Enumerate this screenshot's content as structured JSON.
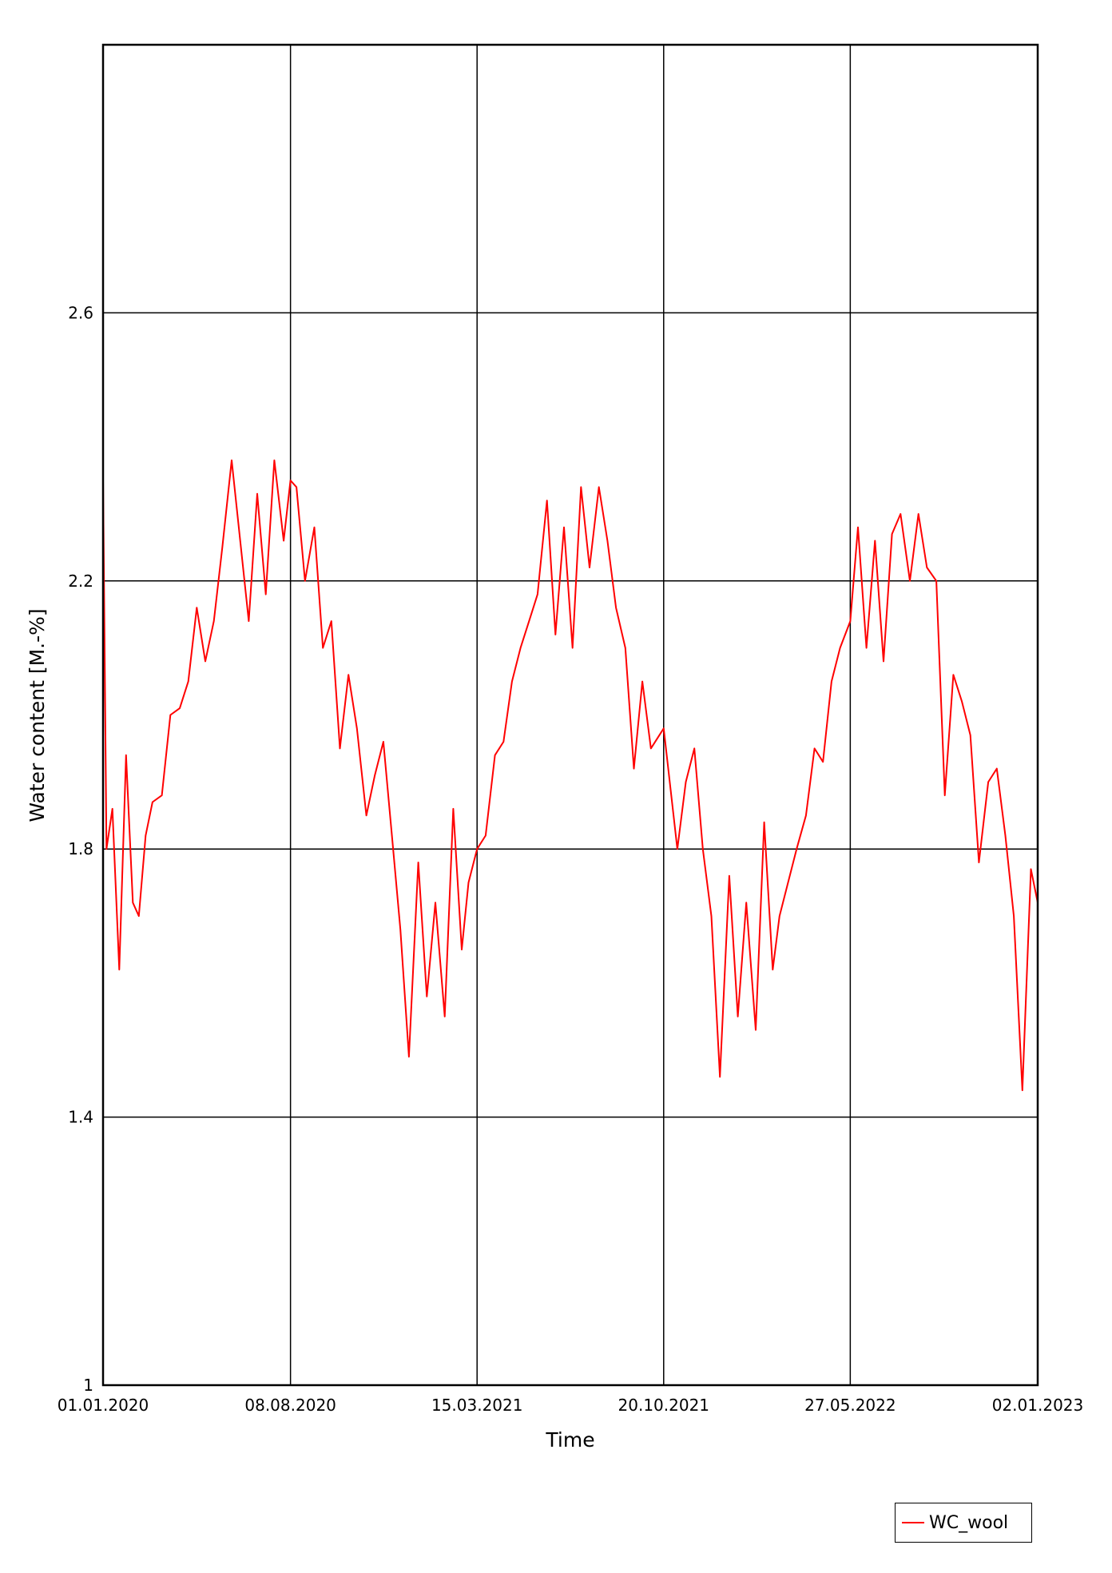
{
  "chart_data": {
    "type": "line",
    "title": "",
    "xlabel": "Time",
    "ylabel": "Water content [M.-%]",
    "xlim": [
      "2020-01-01",
      "2023-01-02"
    ],
    "ylim": [
      1.0,
      3.0
    ],
    "x_ticks": [
      "01.01.2020",
      "08.08.2020",
      "15.03.2021",
      "20.10.2021",
      "27.05.2022",
      "02.01.2023"
    ],
    "y_ticks": [
      "1",
      "1.4",
      "1.8",
      "2.2",
      "2.6"
    ],
    "grid": true,
    "legend": {
      "position": "bottom-right",
      "entries": [
        "WC_wool"
      ]
    },
    "series": [
      {
        "name": "WC_wool",
        "color": "#ff0000",
        "x": [
          "2020-01-01",
          "2020-01-05",
          "2020-01-12",
          "2020-01-20",
          "2020-01-28",
          "2020-02-05",
          "2020-02-12",
          "2020-02-20",
          "2020-02-28",
          "2020-03-10",
          "2020-03-20",
          "2020-03-31",
          "2020-04-10",
          "2020-04-20",
          "2020-04-30",
          "2020-05-10",
          "2020-05-20",
          "2020-05-31",
          "2020-06-10",
          "2020-06-20",
          "2020-06-30",
          "2020-07-10",
          "2020-07-20",
          "2020-07-31",
          "2020-08-08",
          "2020-08-15",
          "2020-08-25",
          "2020-09-05",
          "2020-09-15",
          "2020-09-25",
          "2020-10-05",
          "2020-10-15",
          "2020-10-25",
          "2020-11-05",
          "2020-11-15",
          "2020-11-25",
          "2020-12-05",
          "2020-12-15",
          "2020-12-25",
          "2021-01-05",
          "2021-01-15",
          "2021-01-25",
          "2021-02-05",
          "2021-02-15",
          "2021-02-25",
          "2021-03-05",
          "2021-03-15",
          "2021-03-25",
          "2021-04-05",
          "2021-04-15",
          "2021-04-25",
          "2021-05-05",
          "2021-05-15",
          "2021-05-25",
          "2021-06-05",
          "2021-06-15",
          "2021-06-25",
          "2021-07-05",
          "2021-07-15",
          "2021-07-25",
          "2021-08-05",
          "2021-08-15",
          "2021-08-25",
          "2021-09-05",
          "2021-09-15",
          "2021-09-25",
          "2021-10-05",
          "2021-10-20",
          "2021-11-05",
          "2021-11-15",
          "2021-11-25",
          "2021-12-05",
          "2021-12-15",
          "2021-12-25",
          "2022-01-05",
          "2022-01-15",
          "2022-01-25",
          "2022-02-05",
          "2022-02-15",
          "2022-02-25",
          "2022-03-05",
          "2022-03-15",
          "2022-03-25",
          "2022-04-05",
          "2022-04-15",
          "2022-04-25",
          "2022-05-05",
          "2022-05-15",
          "2022-05-27",
          "2022-06-05",
          "2022-06-15",
          "2022-06-25",
          "2022-07-05",
          "2022-07-15",
          "2022-07-25",
          "2022-08-05",
          "2022-08-15",
          "2022-08-25",
          "2022-09-05",
          "2022-09-15",
          "2022-09-25",
          "2022-10-05",
          "2022-10-15",
          "2022-10-25",
          "2022-11-05",
          "2022-11-15",
          "2022-11-25",
          "2022-12-05",
          "2022-12-15",
          "2022-12-25",
          "2023-01-02"
        ],
        "y": [
          2.35,
          1.8,
          1.86,
          1.62,
          1.94,
          1.72,
          1.7,
          1.82,
          1.87,
          1.88,
          2.0,
          2.01,
          2.05,
          2.16,
          2.08,
          2.14,
          2.25,
          2.38,
          2.26,
          2.14,
          2.33,
          2.18,
          2.38,
          2.26,
          2.35,
          2.34,
          2.2,
          2.28,
          2.1,
          2.14,
          1.95,
          2.06,
          1.98,
          1.85,
          1.91,
          1.96,
          1.82,
          1.68,
          1.49,
          1.78,
          1.58,
          1.72,
          1.55,
          1.86,
          1.65,
          1.75,
          1.8,
          1.82,
          1.94,
          1.96,
          2.05,
          2.1,
          2.14,
          2.18,
          2.32,
          2.12,
          2.28,
          2.1,
          2.34,
          2.22,
          2.34,
          2.26,
          2.16,
          2.1,
          1.92,
          2.05,
          1.95,
          1.98,
          1.8,
          1.9,
          1.95,
          1.8,
          1.7,
          1.46,
          1.76,
          1.55,
          1.72,
          1.53,
          1.84,
          1.62,
          1.7,
          1.75,
          1.8,
          1.85,
          1.95,
          1.93,
          2.05,
          2.1,
          2.14,
          2.28,
          2.1,
          2.26,
          2.08,
          2.27,
          2.3,
          2.2,
          2.3,
          2.22,
          2.2,
          1.88,
          2.06,
          2.02,
          1.97,
          1.78,
          1.9,
          1.92,
          1.82,
          1.7,
          1.44,
          1.77,
          1.72
        ]
      }
    ]
  }
}
